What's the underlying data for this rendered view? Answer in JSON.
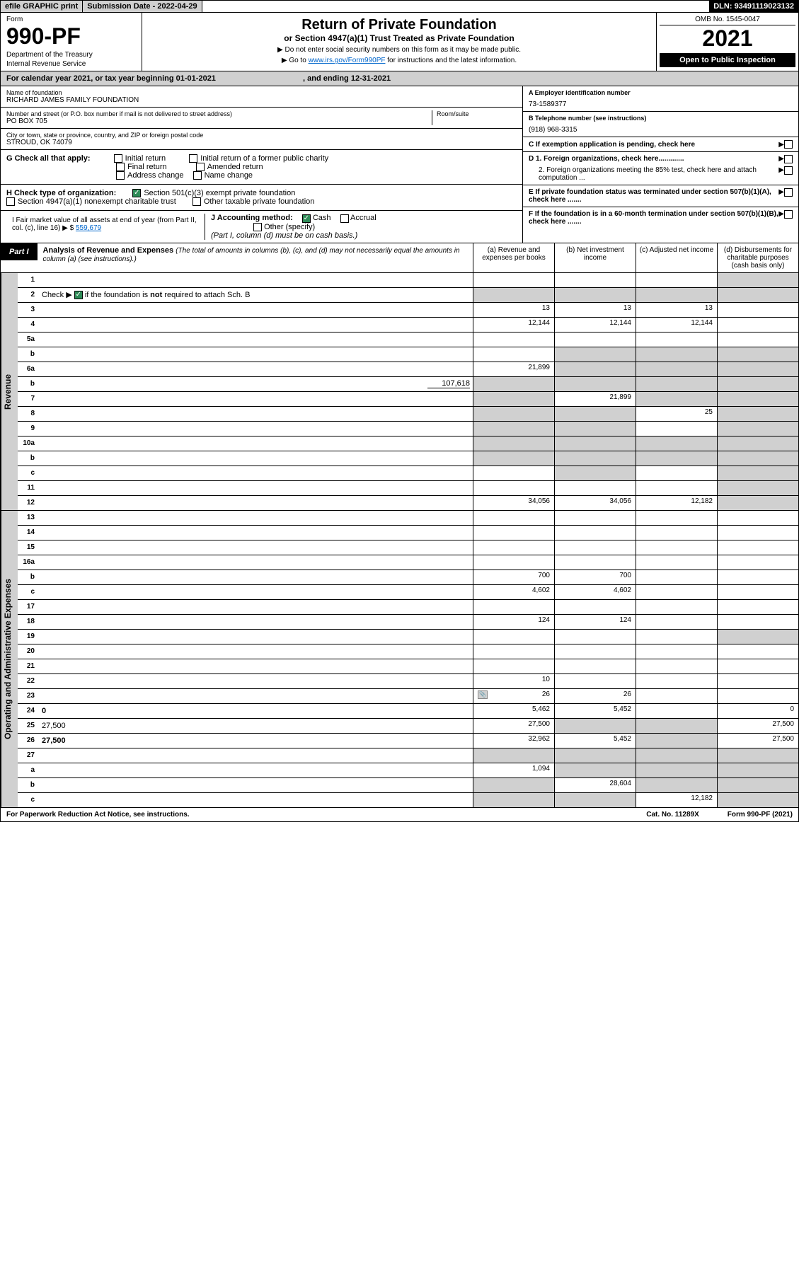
{
  "top": {
    "efile": "efile GRAPHIC print",
    "subdate_label": "Submission Date - ",
    "subdate": "2022-04-29",
    "dln_label": "DLN: ",
    "dln": "93491119023132"
  },
  "header": {
    "form_label": "Form",
    "form_num": "990-PF",
    "dept": "Department of the Treasury",
    "irs": "Internal Revenue Service",
    "title": "Return of Private Foundation",
    "subtitle": "or Section 4947(a)(1) Trust Treated as Private Foundation",
    "instr1": "▶ Do not enter social security numbers on this form as it may be made public.",
    "instr2_pre": "▶ Go to ",
    "instr2_link": "www.irs.gov/Form990PF",
    "instr2_post": " for instructions and the latest information.",
    "omb": "OMB No. 1545-0047",
    "year": "2021",
    "open": "Open to Public Inspection"
  },
  "calendar": {
    "text_pre": "For calendar year 2021, or tax year beginning ",
    "begin": "01-01-2021",
    "text_mid": " , and ending ",
    "end": "12-31-2021"
  },
  "info": {
    "name_label": "Name of foundation",
    "name": "RICHARD JAMES FAMILY FOUNDATION",
    "addr_label": "Number and street (or P.O. box number if mail is not delivered to street address)",
    "addr": "PO BOX 705",
    "room_label": "Room/suite",
    "city_label": "City or town, state or province, country, and ZIP or foreign postal code",
    "city": "STROUD, OK  74079",
    "a_label": "A Employer identification number",
    "a_val": "73-1589377",
    "b_label": "B Telephone number (see instructions)",
    "b_val": "(918) 968-3315",
    "c_label": "C If exemption application is pending, check here",
    "d1_label": "D 1. Foreign organizations, check here.............",
    "d2_label": "2. Foreign organizations meeting the 85% test, check here and attach computation ...",
    "e_label": "E If private foundation status was terminated under section 507(b)(1)(A), check here .......",
    "f_label": "F If the foundation is in a 60-month termination under section 507(b)(1)(B), check here ......."
  },
  "g": {
    "label": "G Check all that apply:",
    "initial": "Initial return",
    "final": "Final return",
    "address": "Address change",
    "initial_former": "Initial return of a former public charity",
    "amended": "Amended return",
    "name": "Name change"
  },
  "h": {
    "label": "H Check type of organization:",
    "opt1": "Section 501(c)(3) exempt private foundation",
    "opt2": "Section 4947(a)(1) nonexempt charitable trust",
    "opt3": "Other taxable private foundation"
  },
  "i": {
    "label": "I Fair market value of all assets at end of year (from Part II, col. (c), line 16) ▶ $",
    "val": "559,679"
  },
  "j": {
    "label": "J Accounting method:",
    "cash": "Cash",
    "accrual": "Accrual",
    "other": "Other (specify)",
    "note": "(Part I, column (d) must be on cash basis.)"
  },
  "part1": {
    "label": "Part I",
    "title": "Analysis of Revenue and Expenses",
    "sub": "(The total of amounts in columns (b), (c), and (d) may not necessarily equal the amounts in column (a) (see instructions).)",
    "col_a": "(a) Revenue and expenses per books",
    "col_b": "(b) Net investment income",
    "col_c": "(c) Adjusted net income",
    "col_d": "(d) Disbursements for charitable purposes (cash basis only)"
  },
  "side": {
    "revenue": "Revenue",
    "expenses": "Operating and Administrative Expenses"
  },
  "rows": [
    {
      "n": "1",
      "d": "",
      "a": "",
      "b": "",
      "c": "",
      "shade_d": true
    },
    {
      "n": "2",
      "d": "",
      "a": "",
      "b": "",
      "c": "",
      "shade_all": true,
      "bold": false,
      "has_check": true
    },
    {
      "n": "3",
      "d": "",
      "a": "13",
      "b": "13",
      "c": "13"
    },
    {
      "n": "4",
      "d": "",
      "a": "12,144",
      "b": "12,144",
      "c": "12,144"
    },
    {
      "n": "5a",
      "d": "",
      "a": "",
      "b": "",
      "c": ""
    },
    {
      "n": "b",
      "d": "",
      "a": "",
      "b": "",
      "c": "",
      "shade_bcd": true
    },
    {
      "n": "6a",
      "d": "",
      "a": "21,899",
      "b": "",
      "c": "",
      "shade_bcd": true
    },
    {
      "n": "b",
      "d": "",
      "inline_val": "107,618",
      "a": "",
      "b": "",
      "c": "",
      "shade_all": true
    },
    {
      "n": "7",
      "d": "",
      "a": "",
      "b": "21,899",
      "c": "",
      "shade_a": true,
      "shade_cd": true
    },
    {
      "n": "8",
      "d": "",
      "a": "",
      "b": "",
      "c": "25",
      "shade_ab": true,
      "shade_d": true
    },
    {
      "n": "9",
      "d": "",
      "a": "",
      "b": "",
      "c": "",
      "shade_ab": true,
      "shade_d": true
    },
    {
      "n": "10a",
      "d": "",
      "a": "",
      "b": "",
      "c": "",
      "shade_all": true
    },
    {
      "n": "b",
      "d": "",
      "a": "",
      "b": "",
      "c": "",
      "shade_all": true
    },
    {
      "n": "c",
      "d": "",
      "a": "",
      "b": "",
      "c": "",
      "shade_b": true,
      "shade_d": true
    },
    {
      "n": "11",
      "d": "",
      "a": "",
      "b": "",
      "c": "",
      "shade_d": true
    },
    {
      "n": "12",
      "d": "",
      "a": "34,056",
      "b": "34,056",
      "c": "12,182",
      "bold": true,
      "shade_d": true
    }
  ],
  "exp_rows": [
    {
      "n": "13",
      "d": "",
      "a": "",
      "b": "",
      "c": ""
    },
    {
      "n": "14",
      "d": "",
      "a": "",
      "b": "",
      "c": ""
    },
    {
      "n": "15",
      "d": "",
      "a": "",
      "b": "",
      "c": ""
    },
    {
      "n": "16a",
      "d": "",
      "a": "",
      "b": "",
      "c": ""
    },
    {
      "n": "b",
      "d": "",
      "a": "700",
      "b": "700",
      "c": ""
    },
    {
      "n": "c",
      "d": "",
      "a": "4,602",
      "b": "4,602",
      "c": ""
    },
    {
      "n": "17",
      "d": "",
      "a": "",
      "b": "",
      "c": ""
    },
    {
      "n": "18",
      "d": "",
      "a": "124",
      "b": "124",
      "c": ""
    },
    {
      "n": "19",
      "d": "",
      "a": "",
      "b": "",
      "c": "",
      "shade_d": true
    },
    {
      "n": "20",
      "d": "",
      "a": "",
      "b": "",
      "c": ""
    },
    {
      "n": "21",
      "d": "",
      "a": "",
      "b": "",
      "c": ""
    },
    {
      "n": "22",
      "d": "",
      "a": "10",
      "b": "",
      "c": ""
    },
    {
      "n": "23",
      "d": "",
      "a": "26",
      "b": "26",
      "c": "",
      "has_icon": true
    },
    {
      "n": "24",
      "d": "0",
      "a": "5,462",
      "b": "5,452",
      "c": "",
      "bold": true
    },
    {
      "n": "25",
      "d": "27,500",
      "a": "27,500",
      "b": "",
      "c": "",
      "shade_bc": true
    },
    {
      "n": "26",
      "d": "27,500",
      "a": "32,962",
      "b": "5,452",
      "c": "",
      "bold": true,
      "shade_c": true
    },
    {
      "n": "27",
      "d": "",
      "a": "",
      "b": "",
      "c": "",
      "shade_all": true
    },
    {
      "n": "a",
      "d": "",
      "a": "1,094",
      "b": "",
      "c": "",
      "bold": true,
      "shade_bcd": true
    },
    {
      "n": "b",
      "d": "",
      "a": "",
      "b": "28,604",
      "c": "",
      "bold": true,
      "shade_a": true,
      "shade_cd": true
    },
    {
      "n": "c",
      "d": "",
      "a": "",
      "b": "",
      "c": "12,182",
      "bold": true,
      "shade_ab": true,
      "shade_d": true
    }
  ],
  "footer": {
    "left": "For Paperwork Reduction Act Notice, see instructions.",
    "mid": "Cat. No. 11289X",
    "right": "Form 990-PF (2021)"
  }
}
